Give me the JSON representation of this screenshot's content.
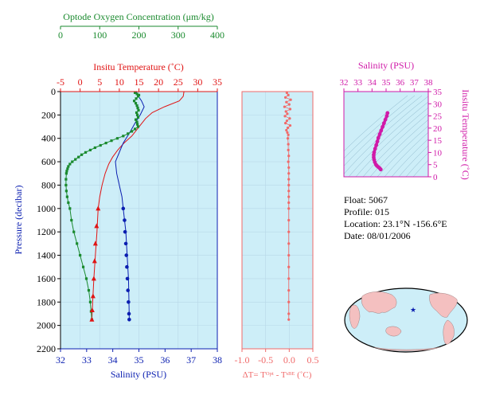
{
  "colors": {
    "oxygen": "#1a8a2e",
    "temperature": "#e01414",
    "salinity": "#0a1eb0",
    "delta": "#f06a6a",
    "ts": "#d01aa8",
    "panel_bg": "#cdeef8",
    "grid": "#b8d8e8"
  },
  "float_info": {
    "float": "Float:  5067",
    "profile": "Profile:  015",
    "location": "Location:  23.1°N  -156.6°E",
    "date": "Date:  08/01/2006"
  },
  "chart_data": [
    {
      "type": "line",
      "name": "profile",
      "y_axis": {
        "label": "Pressure (decibar)",
        "lim": [
          0,
          2200
        ],
        "ticks": [
          "0",
          "200",
          "400",
          "600",
          "800",
          "1000",
          "1200",
          "1400",
          "1600",
          "1800",
          "2000",
          "2200"
        ]
      },
      "oxygen_axis": {
        "label": "Optode Oxygen Concentration (μm/kg)",
        "lim": [
          0,
          400
        ],
        "ticks": [
          "0",
          "100",
          "200",
          "300",
          "400"
        ]
      },
      "temperature_axis": {
        "label": "Insitu Temperature (˚C)",
        "lim": [
          -5,
          35
        ],
        "ticks": [
          "-5",
          "0",
          "5",
          "10",
          "15",
          "20",
          "25",
          "30",
          "35"
        ]
      },
      "salinity_axis": {
        "label": "Salinity (PSU)",
        "lim": [
          32,
          38
        ],
        "ticks": [
          "32",
          "33",
          "34",
          "35",
          "36",
          "37",
          "38"
        ]
      },
      "temperature": {
        "line": [
          [
            26.5,
            0
          ],
          [
            26.3,
            40
          ],
          [
            25.3,
            80
          ],
          [
            21.5,
            130
          ],
          [
            18.4,
            180
          ],
          [
            16.7,
            230
          ],
          [
            15.3,
            290
          ],
          [
            13.2,
            380
          ],
          [
            11.2,
            440
          ],
          [
            9.6,
            500
          ],
          [
            8.3,
            560
          ],
          [
            7.3,
            620
          ],
          [
            6.4,
            700
          ],
          [
            5.6,
            800
          ],
          [
            5.0,
            900
          ],
          [
            4.6,
            1000
          ],
          [
            4.3,
            1200
          ],
          [
            3.9,
            1400
          ],
          [
            3.5,
            1600
          ],
          [
            3.2,
            1800
          ],
          [
            3.0,
            1950
          ]
        ],
        "markers": [
          [
            4.6,
            1000
          ],
          [
            4.2,
            1150
          ],
          [
            3.9,
            1300
          ],
          [
            3.7,
            1450
          ],
          [
            3.5,
            1600
          ],
          [
            3.3,
            1750
          ],
          [
            3.1,
            1870
          ],
          [
            3.0,
            1950
          ]
        ]
      },
      "salinity": {
        "line": [
          [
            34.9,
            0
          ],
          [
            34.95,
            30
          ],
          [
            35.1,
            80
          ],
          [
            35.2,
            130
          ],
          [
            35.05,
            200
          ],
          [
            34.85,
            270
          ],
          [
            34.65,
            350
          ],
          [
            34.4,
            440
          ],
          [
            34.25,
            520
          ],
          [
            34.1,
            600
          ],
          [
            34.15,
            700
          ],
          [
            34.25,
            800
          ],
          [
            34.35,
            900
          ],
          [
            34.4,
            1000
          ],
          [
            34.5,
            1200
          ],
          [
            34.55,
            1400
          ],
          [
            34.6,
            1600
          ],
          [
            34.62,
            1800
          ],
          [
            34.63,
            1950
          ]
        ],
        "markers": [
          [
            34.4,
            1000
          ],
          [
            34.45,
            1100
          ],
          [
            34.47,
            1200
          ],
          [
            34.5,
            1300
          ],
          [
            34.52,
            1400
          ],
          [
            34.54,
            1500
          ],
          [
            34.56,
            1600
          ],
          [
            34.58,
            1700
          ],
          [
            34.6,
            1800
          ],
          [
            34.62,
            1900
          ],
          [
            34.63,
            1950
          ]
        ]
      },
      "oxygen": {
        "points": [
          [
            190,
            10
          ],
          [
            195,
            20
          ],
          [
            200,
            30
          ],
          [
            198,
            40
          ],
          [
            193,
            60
          ],
          [
            188,
            80
          ],
          [
            192,
            100
          ],
          [
            195,
            120
          ],
          [
            197,
            140
          ],
          [
            199,
            160
          ],
          [
            194,
            180
          ],
          [
            196,
            200
          ],
          [
            198,
            220
          ],
          [
            192,
            240
          ],
          [
            195,
            260
          ],
          [
            196,
            280
          ],
          [
            198,
            300
          ],
          [
            190,
            320
          ],
          [
            182,
            340
          ],
          [
            172,
            360
          ],
          [
            160,
            380
          ],
          [
            145,
            400
          ],
          [
            130,
            420
          ],
          [
            116,
            440
          ],
          [
            102,
            460
          ],
          [
            88,
            480
          ],
          [
            76,
            500
          ],
          [
            64,
            520
          ],
          [
            54,
            540
          ],
          [
            46,
            560
          ],
          [
            38,
            580
          ],
          [
            30,
            600
          ],
          [
            24,
            620
          ],
          [
            20,
            640
          ],
          [
            18,
            660
          ],
          [
            16,
            680
          ],
          [
            15,
            700
          ],
          [
            14,
            750
          ],
          [
            14,
            800
          ],
          [
            15,
            850
          ],
          [
            17,
            900
          ],
          [
            20,
            950
          ],
          [
            24,
            1000
          ],
          [
            28,
            1100
          ],
          [
            34,
            1200
          ],
          [
            42,
            1300
          ],
          [
            50,
            1400
          ],
          [
            58,
            1500
          ],
          [
            66,
            1600
          ],
          [
            72,
            1700
          ],
          [
            76,
            1800
          ],
          [
            78,
            1880
          ],
          [
            80,
            1950
          ]
        ]
      }
    },
    {
      "type": "scatter",
      "name": "delta_t",
      "xlabel": "ΔT= Tᴼᵖᵗ - Tˢᴮᴱ (˚C)",
      "xlim": [
        -1.0,
        0.5
      ],
      "x_ticks": [
        "-1.0",
        "-0.5",
        "0.0",
        "0.5"
      ],
      "points": [
        [
          -0.05,
          10
        ],
        [
          -0.02,
          30
        ],
        [
          -0.08,
          50
        ],
        [
          0.03,
          70
        ],
        [
          -0.06,
          90
        ],
        [
          0.0,
          110
        ],
        [
          -0.1,
          130
        ],
        [
          0.02,
          150
        ],
        [
          -0.07,
          170
        ],
        [
          -0.04,
          190
        ],
        [
          -0.09,
          210
        ],
        [
          0.01,
          230
        ],
        [
          -0.05,
          250
        ],
        [
          -0.08,
          270
        ],
        [
          0.02,
          290
        ],
        [
          -0.03,
          310
        ],
        [
          -0.06,
          330
        ],
        [
          -0.04,
          350
        ],
        [
          -0.02,
          370
        ],
        [
          -0.03,
          400
        ],
        [
          -0.02,
          450
        ],
        [
          -0.02,
          500
        ],
        [
          -0.01,
          550
        ],
        [
          -0.02,
          600
        ],
        [
          -0.01,
          650
        ],
        [
          -0.01,
          700
        ],
        [
          -0.01,
          750
        ],
        [
          -0.01,
          800
        ],
        [
          -0.01,
          850
        ],
        [
          -0.01,
          900
        ],
        [
          -0.01,
          950
        ],
        [
          -0.01,
          1000
        ],
        [
          -0.01,
          1100
        ],
        [
          -0.01,
          1200
        ],
        [
          -0.01,
          1300
        ],
        [
          -0.01,
          1400
        ],
        [
          -0.01,
          1500
        ],
        [
          -0.01,
          1600
        ],
        [
          -0.01,
          1700
        ],
        [
          -0.01,
          1800
        ],
        [
          -0.01,
          1900
        ],
        [
          -0.01,
          1950
        ]
      ]
    },
    {
      "type": "line",
      "name": "ts_diagram",
      "xlabel": "Salinity (PSU)",
      "ylabel": "Insitu Temperature (˚C)",
      "xlim": [
        32,
        38
      ],
      "ylim": [
        0,
        35
      ],
      "x_ticks": [
        "32",
        "33",
        "34",
        "35",
        "36",
        "37",
        "38"
      ],
      "y_ticks": [
        "0",
        "5",
        "10",
        "15",
        "20",
        "25",
        "30",
        "35"
      ],
      "points": [
        [
          35.1,
          26.2
        ],
        [
          35.05,
          25.0
        ],
        [
          34.95,
          23.5
        ],
        [
          34.85,
          22.0
        ],
        [
          34.75,
          20.5
        ],
        [
          34.65,
          19.0
        ],
        [
          34.55,
          17.5
        ],
        [
          34.45,
          16.0
        ],
        [
          34.38,
          14.5
        ],
        [
          34.3,
          13.0
        ],
        [
          34.22,
          11.5
        ],
        [
          34.15,
          10.0
        ],
        [
          34.12,
          9.0
        ],
        [
          34.12,
          8.0
        ],
        [
          34.15,
          7.0
        ],
        [
          34.2,
          6.0
        ],
        [
          34.28,
          5.0
        ],
        [
          34.35,
          4.5
        ],
        [
          34.45,
          4.0
        ],
        [
          34.55,
          3.5
        ],
        [
          34.62,
          3.0
        ]
      ]
    }
  ]
}
